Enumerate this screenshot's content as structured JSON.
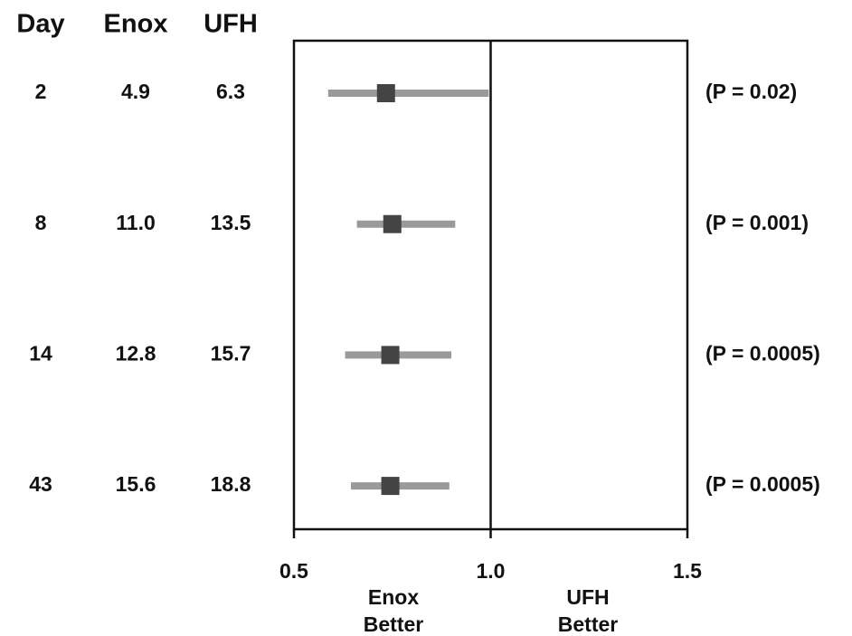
{
  "chart_data": {
    "type": "forest",
    "columns": [
      "Day",
      "Enox",
      "UFH"
    ],
    "rows": [
      [
        "2",
        "4.9",
        "6.3"
      ],
      [
        "8",
        "11.0",
        "13.5"
      ],
      [
        "14",
        "12.8",
        "15.7"
      ],
      [
        "43",
        "15.6",
        "18.8"
      ]
    ],
    "values": [
      0.734,
      0.75,
      0.745,
      0.745
    ],
    "ci_low": [
      0.587,
      0.66,
      0.63,
      0.645
    ],
    "ci_high": [
      0.995,
      0.91,
      0.9,
      0.895
    ],
    "p_labels": [
      "(P = 0.02)",
      "(P = 0.001)",
      "(P = 0.0005)",
      "(P = 0.0005)"
    ],
    "xlim": [
      0.5,
      1.5
    ],
    "xticks": [
      0.5,
      {
        "value": 1,
        "label": "1.0"
      },
      1.5
    ],
    "reference_line": 1,
    "annotations": [
      [
        "Enox",
        "Better"
      ],
      [
        "UFH",
        "Better"
      ]
    ],
    "point_color": "#444444",
    "ci_color": "#9a9a9a"
  }
}
